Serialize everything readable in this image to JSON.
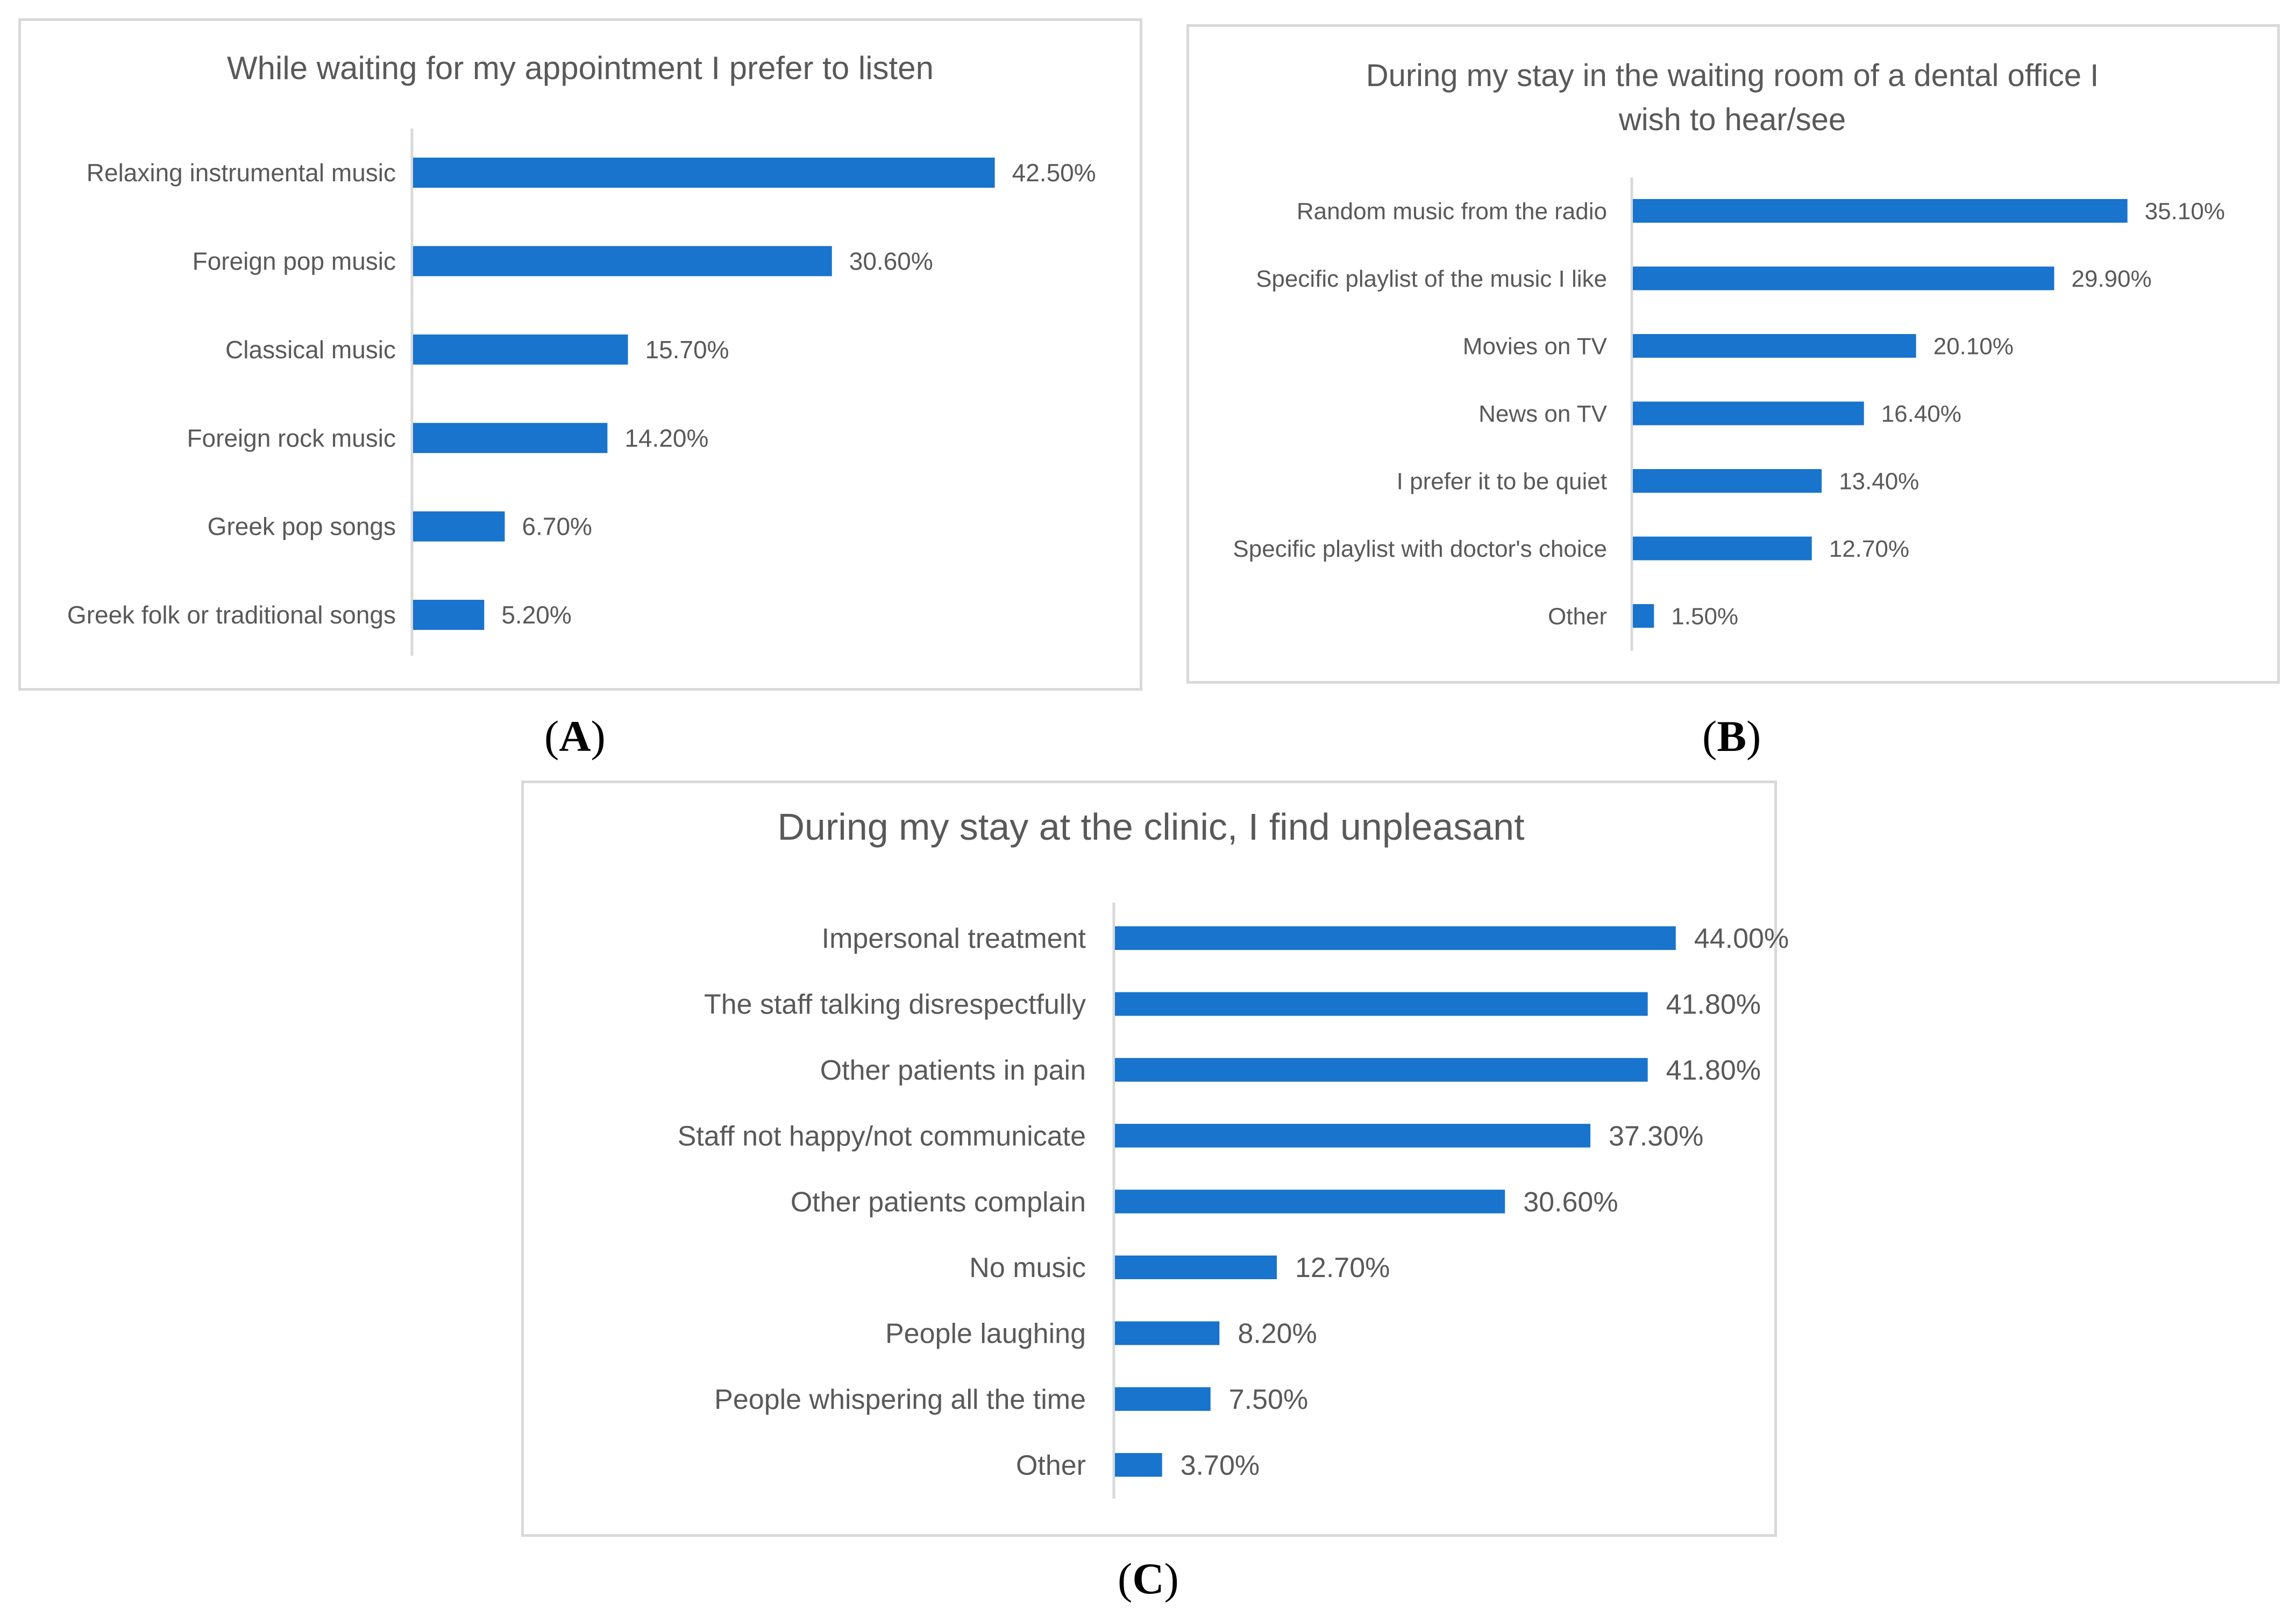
{
  "chart_data": [
    {
      "type": "bar",
      "orientation": "horizontal",
      "title": "While waiting for my appointment I prefer to listen",
      "panel_label": "A",
      "categories": [
        "Relaxing instrumental music",
        "Foreign pop music",
        "Classical music",
        "Foreign rock music",
        "Greek pop songs",
        "Greek folk or traditional songs"
      ],
      "values": [
        42.5,
        30.6,
        15.7,
        14.2,
        6.7,
        5.2
      ],
      "value_labels": [
        "42.50%",
        "30.60%",
        "15.70%",
        "14.20%",
        "6.70%",
        "5.20%"
      ],
      "xlim": [
        0,
        50
      ],
      "bar_color": "#1874cd",
      "grid": false,
      "legend": "none"
    },
    {
      "type": "bar",
      "orientation": "horizontal",
      "title": "During my stay in the waiting room of a dental office I wish to hear/see",
      "title_lines": [
        "During my stay in the waiting room of a dental office I",
        "wish to hear/see"
      ],
      "panel_label": "B",
      "categories": [
        "Random music from the radio",
        "Specific playlist of the music I like",
        "Movies on TV",
        "News on TV",
        "I prefer it to be quiet",
        "Specific playlist with doctor's choice",
        "Other"
      ],
      "values": [
        35.1,
        29.9,
        20.1,
        16.4,
        13.4,
        12.7,
        1.5
      ],
      "value_labels": [
        "35.10%",
        "29.90%",
        "20.10%",
        "16.40%",
        "13.40%",
        "12.70%",
        "1.50%"
      ],
      "xlim": [
        0,
        35.1
      ],
      "bar_color": "#1874cd",
      "grid": false,
      "legend": "none"
    },
    {
      "type": "bar",
      "orientation": "horizontal",
      "title": "During my stay at the clinic, I find unpleasant",
      "panel_label": "C",
      "categories": [
        "Impersonal treatment",
        "The staff talking disrespectfully",
        "Other patients in pain",
        "Staff not happy/not communicate",
        "Other patients complain",
        "No music",
        "People laughing",
        "People whispering all the time",
        "Other"
      ],
      "values": [
        44.0,
        41.8,
        41.8,
        37.3,
        30.6,
        12.7,
        8.2,
        7.5,
        3.7
      ],
      "value_labels": [
        "44.00%",
        "41.80%",
        "41.80%",
        "37.30%",
        "30.60%",
        "12.70%",
        "8.20%",
        "7.50%",
        "3.70%"
      ],
      "xlim": [
        0,
        44.0
      ],
      "bar_color": "#1874cd",
      "grid": false,
      "legend": "none"
    }
  ]
}
